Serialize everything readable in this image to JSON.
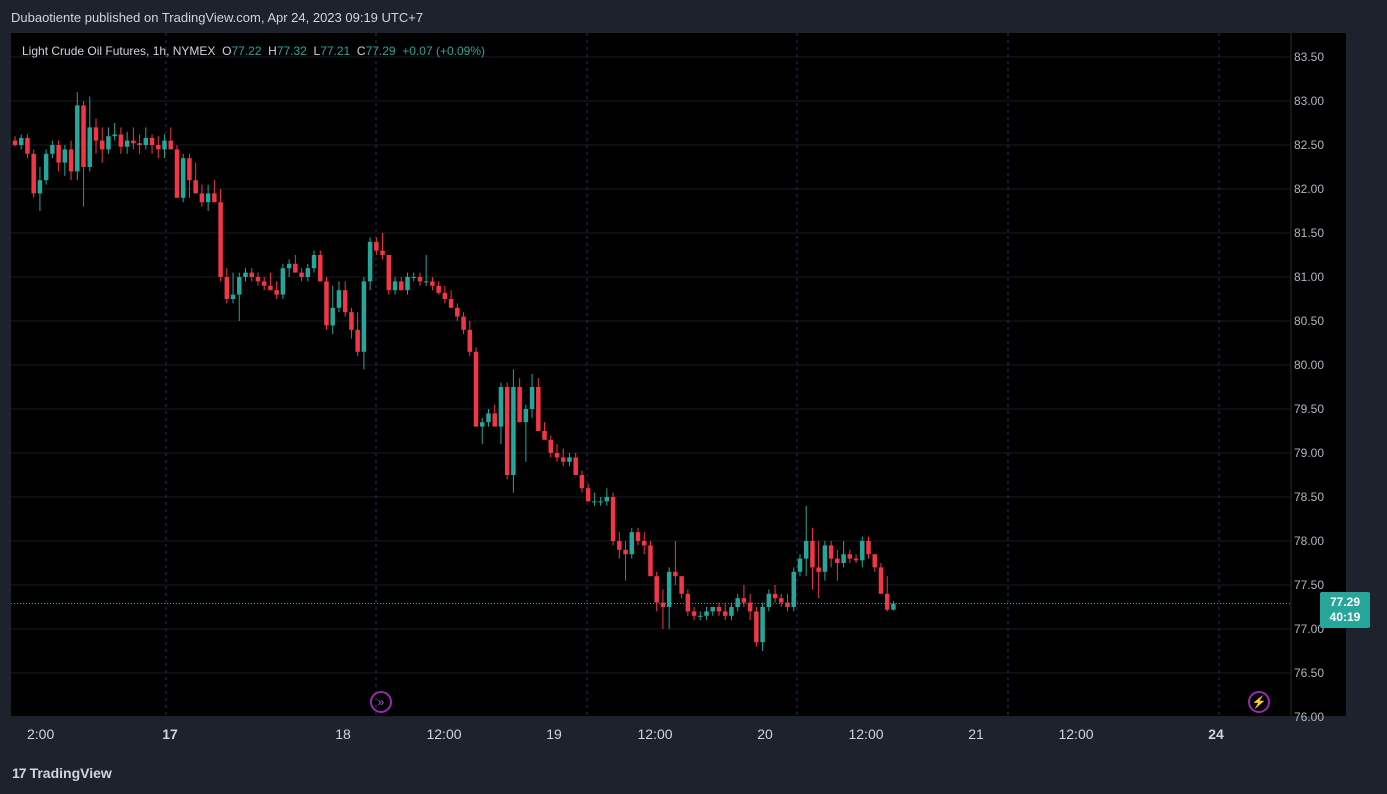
{
  "header": {
    "published_text": "Dubaotiente published on TradingView.com, Apr 24, 2023 09:19 UTC+7"
  },
  "legend": {
    "symbol": "Light Crude Oil Futures, 1h, NYMEX",
    "open_label": "O",
    "open": "77.22",
    "high_label": "H",
    "high": "77.32",
    "low_label": "L",
    "low": "77.21",
    "close_label": "C",
    "close": "77.29",
    "change": "+0.07 (+0.09%)"
  },
  "price_badge": {
    "price": "77.29",
    "countdown": "40:19"
  },
  "footer": {
    "brand": "TradingView",
    "brand_mark": "17"
  },
  "colors": {
    "up": "#26a69a",
    "down": "#f23645",
    "background": "#000000",
    "frame": "#1e222d",
    "grid": "#1a1d25",
    "session_line": "#2a2e6a",
    "event_icon": "#9c27b0"
  },
  "icons": [
    "forward-arrows-icon",
    "lightning-icon"
  ],
  "chart_data": {
    "type": "candlestick",
    "title": "Light Crude Oil Futures, 1h, NYMEX",
    "ylim": [
      76.0,
      83.6
    ],
    "y_ticks": [
      "83.50",
      "83.00",
      "82.50",
      "82.00",
      "81.50",
      "81.00",
      "80.50",
      "80.00",
      "79.50",
      "79.00",
      "78.50",
      "78.00",
      "77.50",
      "77.00",
      "76.50",
      "76.00"
    ],
    "x_ticks": [
      {
        "label": "2:00",
        "bold": false
      },
      {
        "label": "17",
        "bold": true
      },
      {
        "label": "18",
        "bold": false
      },
      {
        "label": "12:00",
        "bold": false
      },
      {
        "label": "19",
        "bold": false
      },
      {
        "label": "12:00",
        "bold": false
      },
      {
        "label": "20",
        "bold": false
      },
      {
        "label": "12:00",
        "bold": false
      },
      {
        "label": "21",
        "bold": false
      },
      {
        "label": "12:00",
        "bold": false
      },
      {
        "label": "24",
        "bold": true
      }
    ],
    "last_price": 77.29,
    "candles": [
      [
        82.55,
        82.6,
        82.48,
        82.5
      ],
      [
        82.5,
        82.62,
        82.45,
        82.58
      ],
      [
        82.58,
        82.62,
        82.35,
        82.4
      ],
      [
        82.4,
        82.45,
        81.9,
        81.95
      ],
      [
        81.95,
        82.25,
        81.75,
        82.1
      ],
      [
        82.1,
        82.45,
        82.05,
        82.4
      ],
      [
        82.4,
        82.55,
        82.35,
        82.5
      ],
      [
        82.5,
        82.55,
        82.2,
        82.3
      ],
      [
        82.3,
        82.5,
        82.15,
        82.45
      ],
      [
        82.45,
        82.55,
        82.1,
        82.2
      ],
      [
        82.2,
        83.1,
        82.1,
        82.95
      ],
      [
        82.95,
        83.0,
        81.8,
        82.25
      ],
      [
        82.25,
        83.05,
        82.2,
        82.7
      ],
      [
        82.7,
        82.8,
        82.4,
        82.55
      ],
      [
        82.55,
        82.7,
        82.3,
        82.45
      ],
      [
        82.45,
        82.7,
        82.4,
        82.6
      ],
      [
        82.6,
        82.75,
        82.55,
        82.62
      ],
      [
        82.62,
        82.7,
        82.4,
        82.48
      ],
      [
        82.48,
        82.65,
        82.4,
        82.55
      ],
      [
        82.55,
        82.7,
        82.45,
        82.52
      ],
      [
        82.52,
        82.62,
        82.4,
        82.5
      ],
      [
        82.5,
        82.7,
        82.45,
        82.58
      ],
      [
        82.58,
        82.62,
        82.4,
        82.5
      ],
      [
        82.5,
        82.6,
        82.35,
        82.45
      ],
      [
        82.45,
        82.62,
        82.35,
        82.55
      ],
      [
        82.55,
        82.7,
        82.45,
        82.45
      ],
      [
        82.45,
        82.5,
        81.9,
        81.9
      ],
      [
        81.9,
        82.4,
        81.85,
        82.35
      ],
      [
        82.35,
        82.4,
        81.9,
        82.1
      ],
      [
        82.1,
        82.3,
        81.95,
        81.95
      ],
      [
        81.95,
        82.05,
        81.8,
        81.85
      ],
      [
        81.85,
        82.05,
        81.75,
        81.95
      ],
      [
        81.95,
        82.1,
        81.85,
        81.85
      ],
      [
        81.85,
        82.0,
        80.95,
        81.0
      ],
      [
        81.0,
        81.1,
        80.7,
        80.75
      ],
      [
        80.75,
        81.05,
        80.7,
        80.8
      ],
      [
        80.8,
        81.05,
        80.5,
        81.0
      ],
      [
        81.0,
        81.1,
        80.95,
        81.05
      ],
      [
        81.05,
        81.1,
        80.95,
        81.0
      ],
      [
        81.0,
        81.05,
        80.9,
        80.95
      ],
      [
        80.95,
        81.0,
        80.85,
        80.9
      ],
      [
        80.9,
        81.05,
        80.85,
        80.85
      ],
      [
        80.85,
        80.95,
        80.75,
        80.8
      ],
      [
        80.8,
        81.15,
        80.75,
        81.1
      ],
      [
        81.1,
        81.2,
        81.0,
        81.15
      ],
      [
        81.15,
        81.25,
        81.05,
        81.05
      ],
      [
        81.05,
        81.1,
        80.95,
        81.0
      ],
      [
        81.0,
        81.15,
        80.95,
        81.1
      ],
      [
        81.1,
        81.3,
        81.05,
        81.25
      ],
      [
        81.25,
        81.3,
        80.95,
        80.95
      ],
      [
        80.95,
        81.0,
        80.4,
        80.45
      ],
      [
        80.45,
        80.9,
        80.35,
        80.65
      ],
      [
        80.65,
        80.95,
        80.6,
        80.85
      ],
      [
        80.85,
        80.95,
        80.55,
        80.6
      ],
      [
        80.6,
        80.65,
        80.3,
        80.4
      ],
      [
        80.4,
        80.6,
        80.1,
        80.15
      ],
      [
        80.15,
        81.0,
        79.95,
        80.95
      ],
      [
        80.95,
        81.45,
        80.85,
        81.4
      ],
      [
        81.4,
        81.45,
        81.25,
        81.3
      ],
      [
        81.3,
        81.5,
        81.2,
        81.25
      ],
      [
        81.25,
        81.25,
        80.8,
        80.85
      ],
      [
        80.85,
        81.0,
        80.8,
        80.95
      ],
      [
        80.95,
        81.0,
        80.85,
        80.85
      ],
      [
        80.85,
        81.05,
        80.8,
        81.0
      ],
      [
        81.0,
        81.05,
        80.95,
        81.0
      ],
      [
        81.0,
        81.05,
        80.9,
        80.95
      ],
      [
        80.95,
        81.25,
        80.9,
        80.95
      ],
      [
        80.95,
        81.0,
        80.85,
        80.9
      ],
      [
        80.9,
        80.95,
        80.8,
        80.82
      ],
      [
        80.82,
        80.9,
        80.7,
        80.75
      ],
      [
        80.75,
        80.85,
        80.65,
        80.65
      ],
      [
        80.65,
        80.7,
        80.5,
        80.55
      ],
      [
        80.55,
        80.6,
        80.35,
        80.4
      ],
      [
        80.4,
        80.5,
        80.1,
        80.15
      ],
      [
        80.15,
        80.2,
        79.3,
        79.3
      ],
      [
        79.3,
        79.4,
        79.1,
        79.35
      ],
      [
        79.35,
        79.5,
        79.3,
        79.45
      ],
      [
        79.45,
        79.55,
        79.3,
        79.3
      ],
      [
        79.3,
        79.8,
        79.1,
        79.75
      ],
      [
        79.75,
        79.8,
        78.7,
        78.75
      ],
      [
        78.75,
        79.95,
        78.55,
        79.75
      ],
      [
        79.75,
        79.85,
        79.35,
        79.35
      ],
      [
        79.35,
        79.55,
        78.9,
        79.5
      ],
      [
        79.5,
        79.9,
        79.4,
        79.75
      ],
      [
        79.75,
        79.85,
        79.25,
        79.25
      ],
      [
        79.25,
        79.35,
        79.15,
        79.15
      ],
      [
        79.15,
        79.2,
        78.95,
        79.0
      ],
      [
        79.0,
        79.1,
        78.9,
        78.95
      ],
      [
        78.95,
        79.05,
        78.85,
        78.9
      ],
      [
        78.9,
        79.0,
        78.85,
        78.95
      ],
      [
        78.95,
        79.0,
        78.75,
        78.75
      ],
      [
        78.75,
        78.8,
        78.55,
        78.6
      ],
      [
        78.6,
        78.65,
        78.45,
        78.45
      ],
      [
        78.45,
        78.55,
        78.4,
        78.45
      ],
      [
        78.45,
        78.5,
        78.4,
        78.45
      ],
      [
        78.45,
        78.6,
        78.4,
        78.5
      ],
      [
        78.5,
        78.55,
        77.95,
        78.0
      ],
      [
        78.0,
        78.1,
        77.8,
        77.9
      ],
      [
        77.9,
        78.0,
        77.55,
        77.85
      ],
      [
        77.85,
        78.15,
        77.8,
        78.1
      ],
      [
        78.1,
        78.15,
        77.95,
        78.0
      ],
      [
        78.0,
        78.1,
        77.85,
        77.95
      ],
      [
        77.95,
        78.0,
        77.6,
        77.6
      ],
      [
        77.6,
        77.65,
        77.2,
        77.3
      ],
      [
        77.3,
        77.45,
        77.0,
        77.25
      ],
      [
        77.25,
        77.7,
        77.0,
        77.65
      ],
      [
        77.65,
        78.0,
        77.5,
        77.6
      ],
      [
        77.6,
        77.6,
        77.35,
        77.4
      ],
      [
        77.4,
        77.45,
        77.15,
        77.2
      ],
      [
        77.2,
        77.25,
        77.1,
        77.15
      ],
      [
        77.15,
        77.2,
        77.1,
        77.15
      ],
      [
        77.15,
        77.25,
        77.1,
        77.2
      ],
      [
        77.2,
        77.25,
        77.15,
        77.25
      ],
      [
        77.25,
        77.3,
        77.15,
        77.2
      ],
      [
        77.2,
        77.3,
        77.1,
        77.15
      ],
      [
        77.15,
        77.3,
        77.1,
        77.25
      ],
      [
        77.25,
        77.4,
        77.2,
        77.35
      ],
      [
        77.35,
        77.5,
        77.25,
        77.3
      ],
      [
        77.3,
        77.4,
        77.1,
        77.2
      ],
      [
        77.2,
        77.25,
        76.8,
        76.85
      ],
      [
        76.85,
        77.3,
        76.75,
        77.25
      ],
      [
        77.25,
        77.45,
        77.2,
        77.4
      ],
      [
        77.4,
        77.5,
        77.3,
        77.35
      ],
      [
        77.35,
        77.4,
        77.25,
        77.3
      ],
      [
        77.3,
        77.4,
        77.2,
        77.25
      ],
      [
        77.25,
        77.7,
        77.2,
        77.65
      ],
      [
        77.65,
        77.85,
        77.6,
        77.8
      ],
      [
        77.8,
        78.4,
        77.6,
        78.0
      ],
      [
        78.0,
        78.15,
        77.45,
        77.7
      ],
      [
        77.7,
        78.0,
        77.35,
        77.65
      ],
      [
        77.65,
        78.0,
        77.55,
        77.95
      ],
      [
        77.95,
        78.0,
        77.7,
        77.8
      ],
      [
        77.8,
        77.9,
        77.55,
        77.75
      ],
      [
        77.75,
        78.0,
        77.7,
        77.85
      ],
      [
        77.85,
        77.9,
        77.75,
        77.8
      ],
      [
        77.8,
        77.85,
        77.75,
        77.78
      ],
      [
        77.78,
        78.05,
        77.7,
        78.0
      ],
      [
        78.0,
        78.05,
        77.8,
        77.85
      ],
      [
        77.85,
        77.85,
        77.65,
        77.7
      ],
      [
        77.7,
        77.75,
        77.4,
        77.4
      ],
      [
        77.4,
        77.6,
        77.2,
        77.22
      ],
      [
        77.22,
        77.32,
        77.21,
        77.29
      ]
    ]
  }
}
